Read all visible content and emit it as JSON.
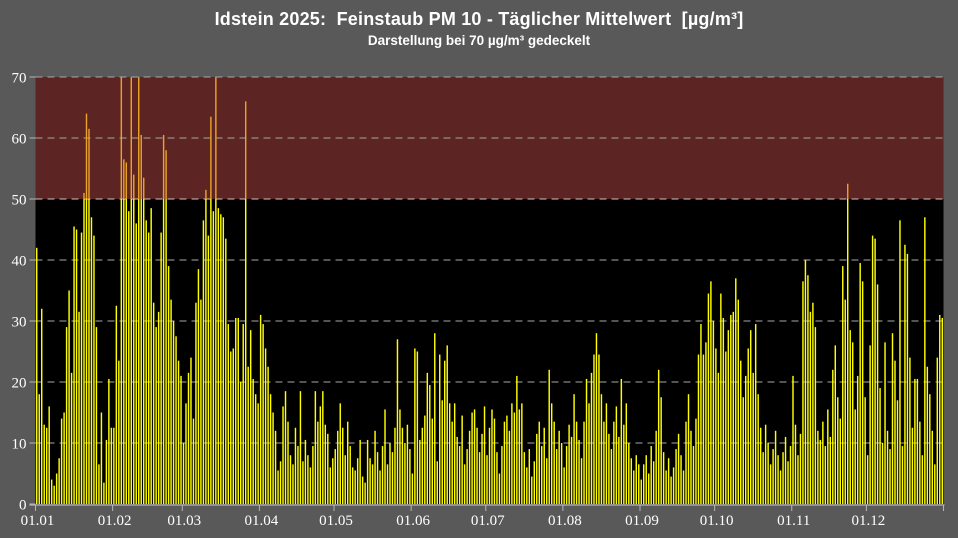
{
  "title": "Idstein 2025:  Feinstaub PM 10 - Täglicher Mittelwert  [µg/m³]",
  "subtitle": "Darstellung bei 70 µg/m³ gedeckelt",
  "chart_data": {
    "type": "bar",
    "title": "Idstein 2025:  Feinstaub PM 10 - Täglicher Mittelwert  [µg/m³]",
    "subtitle": "Darstellung bei 70 µg/m³ gedeckelt",
    "ylabel": "",
    "xlabel": "",
    "ylim": [
      0,
      70
    ],
    "threshold": 50,
    "cap": 70,
    "grid": "dashed horizontal lines every 10",
    "legend": "none",
    "y_ticks": [
      0,
      10,
      20,
      30,
      40,
      50,
      60,
      70
    ],
    "x_tick_labels": [
      "01.01",
      "01.02",
      "01.03",
      "01.04",
      "01.05",
      "01.06",
      "01.07",
      "01.08",
      "01.09",
      "01.10",
      "01.11",
      "01.12"
    ],
    "month_days": [
      31,
      28,
      31,
      30,
      31,
      30,
      31,
      31,
      30,
      31,
      30,
      31
    ],
    "values_note": "daily PM10 mean estimates, µg/m³, capped at 70",
    "values": [
      42,
      18,
      32,
      13,
      12.5,
      16,
      4,
      3,
      5,
      7.5,
      14,
      15,
      29,
      35,
      21.5,
      45.5,
      45,
      31.5,
      44.5,
      51,
      64,
      61.5,
      47,
      44,
      29,
      6.5,
      15,
      3.5,
      10.5,
      20.5,
      12.5,
      12.5,
      32.5,
      23.5,
      70,
      56.5,
      56,
      48,
      70,
      54,
      46,
      70,
      60.5,
      53.5,
      46.5,
      44.5,
      48.5,
      33,
      29,
      31.5,
      44.5,
      60.5,
      58,
      39,
      33.5,
      30,
      27.5,
      23.5,
      21,
      10,
      16.5,
      21.5,
      24,
      14,
      33,
      38.5,
      33.5,
      46.5,
      51.5,
      44,
      63.5,
      48,
      70,
      48.5,
      47.5,
      47,
      43.5,
      29.5,
      25,
      25.5,
      30.5,
      30.5,
      20,
      29.5,
      66,
      22.5,
      28.5,
      20.5,
      18,
      16.5,
      31,
      29.5,
      25.5,
      22.5,
      18,
      15,
      12,
      5.5,
      7,
      16,
      18.5,
      13.5,
      8,
      6.5,
      12.5,
      9.5,
      18.5,
      7,
      10.5,
      8,
      6,
      9.5,
      18.5,
      13.5,
      16,
      18.5,
      13,
      11.5,
      6,
      7.5,
      9,
      12,
      16.5,
      12.5,
      8,
      13.5,
      9.5,
      6,
      5.5,
      7.5,
      10.5,
      4.5,
      3.5,
      10.5,
      7.5,
      6.5,
      12,
      8.5,
      5.5,
      9.5,
      15.5,
      6.5,
      10,
      8.5,
      12.5,
      27,
      15.5,
      12.5,
      10,
      13,
      9,
      5,
      25.5,
      25,
      10.5,
      12.5,
      14.5,
      21.5,
      19.5,
      14,
      28,
      7,
      24.5,
      17,
      23.5,
      26,
      16.5,
      13.5,
      16.5,
      11,
      9.5,
      14.5,
      6.5,
      9,
      12,
      15,
      15.5,
      12.5,
      8.5,
      11.5,
      16,
      8,
      12.5,
      15.5,
      14,
      8.5,
      5,
      9.5,
      13.5,
      14.5,
      12,
      16.5,
      15,
      21,
      15.5,
      16.5,
      8.5,
      6,
      9,
      4.5,
      7,
      11.5,
      13.5,
      9.5,
      12.5,
      7.5,
      22,
      16.5,
      13.5,
      9,
      12,
      10,
      6,
      9.5,
      13,
      11,
      18,
      13.5,
      10.5,
      7.5,
      13.5,
      20.5,
      16.5,
      21.5,
      24.5,
      28,
      24.5,
      18,
      13.5,
      16.5,
      11.5,
      9,
      13.5,
      16,
      11,
      20.5,
      13,
      16.5,
      10,
      7.5,
      5.5,
      8,
      6.5,
      4,
      6.5,
      8,
      5,
      9.5,
      7,
      12,
      22,
      17.5,
      8.5,
      5.5,
      7.5,
      4.5,
      6,
      9,
      11.5,
      8,
      5.5,
      13.5,
      18,
      12,
      9.5,
      14,
      24.5,
      29.5,
      24.5,
      26.5,
      34.5,
      36.5,
      30,
      25.5,
      21.5,
      34.5,
      30.5,
      25,
      28.5,
      31,
      31.5,
      37,
      33.5,
      23.5,
      17.5,
      21,
      25.5,
      28.5,
      21.5,
      29.5,
      18,
      12.5,
      8.5,
      13,
      10,
      6.5,
      9,
      12,
      8,
      5.5,
      8.5,
      11,
      7,
      9.5,
      21,
      13,
      8,
      11.5,
      36.5,
      40,
      37.5,
      31.5,
      33,
      29,
      12,
      10.5,
      13.5,
      9.5,
      15.5,
      11,
      22,
      26,
      17.5,
      14,
      39,
      33.5,
      52.5,
      28.5,
      26.5,
      15.5,
      21,
      39.5,
      36.5,
      17.5,
      8,
      26,
      44,
      43.5,
      36,
      19,
      10,
      26.5,
      12,
      9,
      28,
      23.5,
      17,
      46.5,
      9.5,
      42.5,
      41,
      24,
      12.5,
      20.5,
      20.5,
      13.5,
      8,
      47,
      22.5,
      18,
      12,
      6.5,
      24,
      31,
      30.5
    ],
    "colors": {
      "background": "#595959",
      "plot_background": "#000000",
      "exceedance_zone": "#5C2422",
      "bar": "#FFFF00",
      "bar_exceed": "#E9A227",
      "gridline": "#A8A8A8",
      "gridline_bright": "#C9C9C9",
      "axis": "#B5B5B5",
      "axis_text": "#FFFFFF"
    }
  }
}
